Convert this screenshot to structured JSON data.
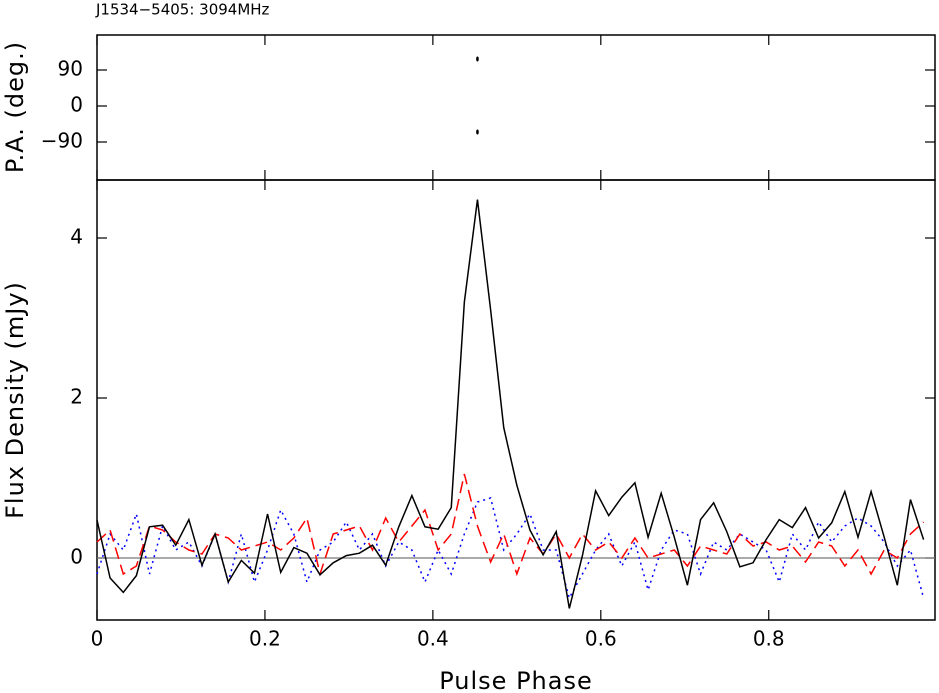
{
  "chart_data": [
    {
      "type": "scatter",
      "title": "J1534−5405: 3094MHz",
      "ylabel": "P.A. (deg.)",
      "x": [
        0.4531,
        0.4531
      ],
      "values": [
        117.5,
        -65
      ],
      "color": "#000000",
      "xlim": [
        0,
        0.998
      ],
      "ylim": [
        -185,
        177.5
      ],
      "yticks": [
        90,
        0,
        {
          "value": -90,
          "label": "−90"
        }
      ]
    },
    {
      "type": "line",
      "xlabel": "Pulse Phase",
      "ylabel": "Flux Density (mJy)",
      "xlim": [
        0,
        0.998
      ],
      "ylim": [
        -0.775,
        4.725
      ],
      "xticks": [
        0,
        0.2,
        0.4,
        0.6,
        0.8
      ],
      "yticks": [
        0,
        2,
        4
      ],
      "zero_line": true,
      "x": [
        0,
        0.0156,
        0.0313,
        0.0469,
        0.0625,
        0.0781,
        0.0938,
        0.1094,
        0.125,
        0.1406,
        0.1563,
        0.1719,
        0.1875,
        0.2031,
        0.2188,
        0.2344,
        0.25,
        0.2656,
        0.2813,
        0.2969,
        0.3125,
        0.3281,
        0.3438,
        0.3594,
        0.375,
        0.3906,
        0.4063,
        0.4219,
        0.4375,
        0.4531,
        0.4688,
        0.4844,
        0.5,
        0.5156,
        0.5313,
        0.5469,
        0.5625,
        0.5781,
        0.5938,
        0.6094,
        0.625,
        0.6406,
        0.6563,
        0.6719,
        0.6875,
        0.7031,
        0.7188,
        0.7344,
        0.75,
        0.7656,
        0.7813,
        0.7969,
        0.8125,
        0.8281,
        0.8438,
        0.8594,
        0.875,
        0.8906,
        0.9063,
        0.9219,
        0.9375,
        0.9531,
        0.9688,
        0.9844
      ],
      "series": [
        {
          "color": "#0000ff",
          "style": "dotted",
          "values": [
            -0.2,
            0.3,
            0.1,
            0.55,
            -0.2,
            0.4,
            0.1,
            0.2,
            -0.1,
            0.3,
            -0.3,
            0.3,
            -0.3,
            0.1,
            0.6,
            0.3,
            -0.3,
            0.1,
            0.2,
            0.45,
            0.1,
            0.3,
            -0.1,
            0.2,
            0.1,
            -0.3,
            0.1,
            -0.2,
            0.3,
            0.7,
            0.75,
            0.1,
            0.3,
            0.55,
            0.1,
            0.1,
            -0.5,
            -0.2,
            0.1,
            0.3,
            -0.1,
            0.2,
            -0.4,
            0.1,
            0.35,
            0.3,
            -0.2,
            0.2,
            0.1,
            0.3,
            0.2,
            0.1,
            -0.3,
            0.3,
            0.1,
            0.45,
            0.2,
            0.4,
            0.5,
            0.4,
            0.2,
            -0.1,
            0.1,
            -0.5
          ]
        },
        {
          "color": "#ff0000",
          "style": "dashed",
          "values": [
            0.2,
            0.35,
            -0.2,
            -0.1,
            0.4,
            0.35,
            0.2,
            0.1,
            0.05,
            0.3,
            0.25,
            0.1,
            0.15,
            0.2,
            0.1,
            0.25,
            0.5,
            -0.2,
            0.3,
            0.35,
            0.4,
            0.1,
            0.5,
            0.2,
            0.4,
            0.6,
            0.1,
            0.3,
            1.05,
            0.4,
            -0.05,
            0.3,
            -0.2,
            0.25,
            0.05,
            0.3,
            0.0,
            0.3,
            0.1,
            0.2,
            0.0,
            0.25,
            0.0,
            0.05,
            0.1,
            -0.1,
            0.15,
            0.1,
            0.05,
            0.3,
            0.15,
            0.2,
            0.1,
            0.15,
            -0.05,
            0.2,
            0.15,
            -0.1,
            0.1,
            -0.2,
            0.1,
            0.0,
            0.3,
            0.45
          ]
        },
        {
          "color": "#000000",
          "style": "solid",
          "values": [
            0.475,
            -0.25,
            -0.43,
            -0.22,
            0.39,
            0.41,
            0.16,
            0.48,
            -0.09,
            0.3,
            -0.3,
            -0.03,
            -0.19,
            0.55,
            -0.18,
            0.13,
            0.06,
            -0.21,
            -0.06,
            0.03,
            0.06,
            0.16,
            -0.09,
            0.39,
            0.78,
            0.39,
            0.36,
            0.63,
            3.2,
            4.48,
            3.1,
            1.63,
            0.91,
            0.35,
            0.04,
            0.33,
            -0.63,
            0.03,
            0.84,
            0.53,
            0.76,
            0.94,
            0.26,
            0.81,
            0.26,
            -0.34,
            0.48,
            0.69,
            0.33,
            -0.11,
            -0.06,
            0.23,
            0.48,
            0.38,
            0.63,
            0.25,
            0.44,
            0.83,
            0.26,
            0.83,
            0.26,
            -0.34,
            0.73,
            0.23
          ]
        }
      ]
    }
  ]
}
